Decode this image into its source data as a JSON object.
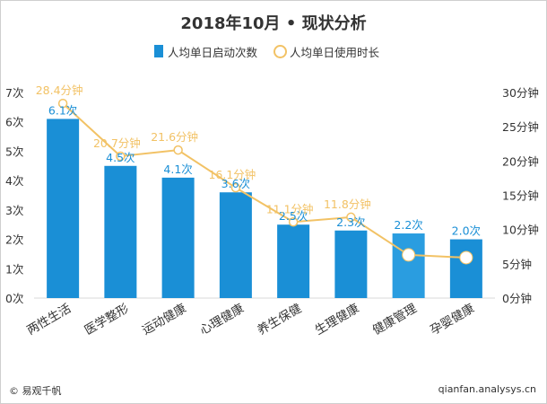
{
  "chart_data": {
    "type": "bar+line",
    "title": "2018年10月 • 现状分析",
    "categories": [
      "两性生活",
      "医学整形",
      "运动健康",
      "心理健康",
      "养生保健",
      "生理健康",
      "健康管理",
      "孕婴健康"
    ],
    "series": [
      {
        "name": "人均单日启动次数",
        "type": "bar",
        "axis": "left",
        "values": [
          6.1,
          4.5,
          4.1,
          3.6,
          2.5,
          2.3,
          2.2,
          2.0
        ],
        "labels": [
          "6.1次",
          "4.5次",
          "4.1次",
          "3.6次",
          "2.5次",
          "2.3次",
          "2.2次",
          "2.0次"
        ]
      },
      {
        "name": "人均单日使用时长",
        "type": "line",
        "axis": "right",
        "values": [
          28.4,
          20.7,
          21.6,
          16.1,
          11.1,
          11.8,
          6.3,
          5.9
        ],
        "labels": [
          "28.4分钟",
          "20.7分钟",
          "21.6分钟",
          "16.1分钟",
          "11.1分钟",
          "11.8分钟",
          "",
          ""
        ]
      }
    ],
    "y_left": {
      "ticks": [
        "0次",
        "1次",
        "2次",
        "3次",
        "4次",
        "5次",
        "6次",
        "7次"
      ],
      "range": [
        0,
        7
      ]
    },
    "y_right": {
      "ticks": [
        "0分钟",
        "5分钟",
        "10分钟",
        "15分钟",
        "20分钟",
        "25分钟",
        "30分钟"
      ],
      "range": [
        0,
        30
      ]
    },
    "legend_position": "top",
    "colors": {
      "bar": "#1a8fd6",
      "bar_light": "#2a9de0",
      "line": "#f2c265",
      "bar_label": "#1a8fd6",
      "line_label": "#f2c265"
    }
  },
  "footer": {
    "left": "© 易观千帆",
    "right": "qianfan.analysys.cn"
  }
}
